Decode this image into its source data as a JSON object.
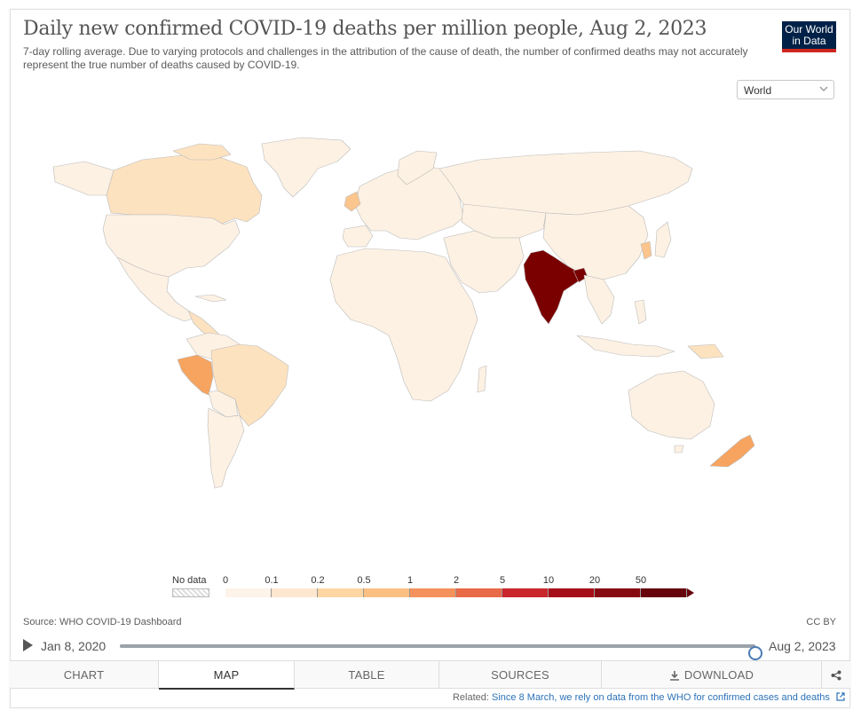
{
  "header": {
    "title": "Daily new confirmed COVID-19 deaths per million people, Aug 2, 2023",
    "subtitle": "7-day rolling average. Due to varying protocols and challenges in the attribution of the cause of death, the number of confirmed deaths may not accurately represent the true number of deaths caused by COVID-19.",
    "logo_line1": "Our World",
    "logo_line2": "in Data"
  },
  "region_select": {
    "value": "World"
  },
  "legend": {
    "no_data_label": "No data",
    "bins": [
      {
        "label": "0",
        "color": "#fdf3e8"
      },
      {
        "label": "0.1",
        "color": "#fde8cf"
      },
      {
        "label": "0.2",
        "color": "#fdd6a4"
      },
      {
        "label": "0.5",
        "color": "#fbbf82"
      },
      {
        "label": "1",
        "color": "#f5925b"
      },
      {
        "label": "2",
        "color": "#e96a47"
      },
      {
        "label": "5",
        "color": "#c9262b"
      },
      {
        "label": "10",
        "color": "#a70f18"
      },
      {
        "label": "20",
        "color": "#880b13"
      },
      {
        "label": "50",
        "color": "#66050c"
      }
    ]
  },
  "source_text": "Source: WHO COVID-19 Dashboard",
  "license_text": "CC BY",
  "timeline": {
    "start_date": "Jan 8, 2020",
    "end_date": "Aug 2, 2023",
    "progress": 1.0
  },
  "tabs": [
    {
      "label": "CHART",
      "active": false
    },
    {
      "label": "MAP",
      "active": true
    },
    {
      "label": "TABLE",
      "active": false
    },
    {
      "label": "SOURCES",
      "active": false
    },
    {
      "label": "DOWNLOAD",
      "active": false
    }
  ],
  "related": {
    "prefix": "Related:",
    "link_text": "Since 8 March, we rely on data from the WHO for confirmed cases and deaths"
  },
  "map_colors": {
    "ocean": "#ffffff",
    "border": "#bbbbbb",
    "india": "#7a0000",
    "highlight_light": "#fde2c0",
    "highlight_mid": "#fbc58e",
    "highlight_strong": "#f7a460",
    "default": "#fdf1e3"
  }
}
